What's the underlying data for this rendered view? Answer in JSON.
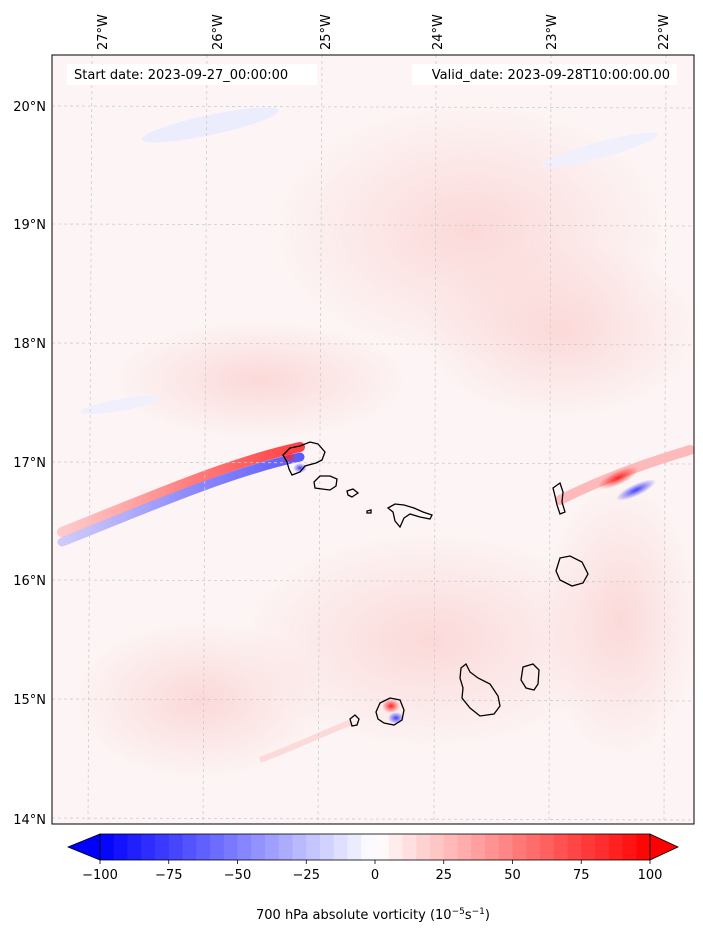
{
  "header": {
    "start_date": "Start date: 2023-09-27_00:00:00",
    "valid_date": "Valid_date: 2023-09-28T10:00:00.00"
  },
  "map": {
    "projection": "lat-lon",
    "lon_range": [
      -27.35,
      -21.78
    ],
    "lat_range": [
      13.95,
      20.42
    ],
    "grid": true,
    "lon_ticks": [
      {
        "value": -27,
        "label": "27°W"
      },
      {
        "value": -26,
        "label": "26°W"
      },
      {
        "value": -25,
        "label": "25°W"
      },
      {
        "value": -24,
        "label": "24°W"
      },
      {
        "value": -23,
        "label": "23°W"
      },
      {
        "value": -22,
        "label": "22°W"
      }
    ],
    "lat_ticks": [
      {
        "value": 20,
        "label": "20°N"
      },
      {
        "value": 19,
        "label": "19°N"
      },
      {
        "value": 18,
        "label": "18°N"
      },
      {
        "value": 17,
        "label": "17°N"
      },
      {
        "value": 16,
        "label": "16°N"
      },
      {
        "value": 15,
        "label": "15°N"
      },
      {
        "value": 14,
        "label": "14°N"
      }
    ],
    "colors": {
      "background": "#fdf5f5",
      "coast": "#000000",
      "grid": "#cccccc"
    }
  },
  "colorbar": {
    "label_html_main": "700 hPa absolute vorticity (10",
    "label_exp1": "−5",
    "label_mid": "s",
    "label_exp2": "−1",
    "label_end": ")",
    "min": -100,
    "max": 100,
    "extend": "both",
    "cmap": "bwr",
    "ticks": [
      {
        "value": -100,
        "label": "−100"
      },
      {
        "value": -75,
        "label": "−75"
      },
      {
        "value": -50,
        "label": "−50"
      },
      {
        "value": -25,
        "label": "−25"
      },
      {
        "value": 0,
        "label": "0"
      },
      {
        "value": 25,
        "label": "25"
      },
      {
        "value": 50,
        "label": "50"
      },
      {
        "value": 75,
        "label": "75"
      },
      {
        "value": 100,
        "label": "100"
      }
    ]
  }
}
